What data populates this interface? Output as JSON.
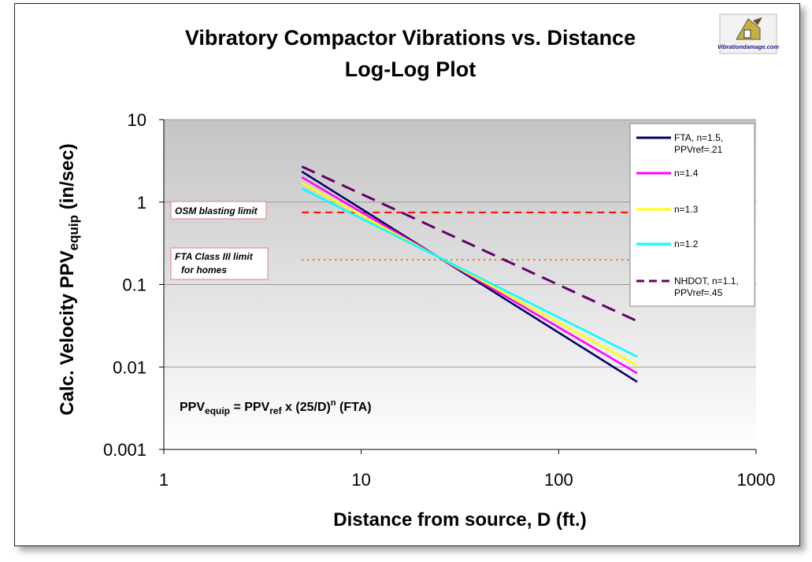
{
  "title_lines": [
    "Vibratory Compactor Vibrations vs. Distance",
    "Log-Log Plot"
  ],
  "logo_text": "Vibrationdamage.com",
  "formula": {
    "main": "PPV",
    "sub1": "equip",
    "eq": " = PPV",
    "sub2": "ref",
    "mid": " x  (25/D)",
    "sup": "n",
    "tail": " (FTA)"
  },
  "annotations": {
    "osm": "OSM blasting limit",
    "fta_line1": "FTA Class III limit",
    "fta_line2": "for homes"
  },
  "colors": {
    "fta": "#000066",
    "n14": "#ff00ff",
    "n13": "#ffff00",
    "n12": "#00ffff",
    "nhdot": "#660066",
    "osm": "#ff0000",
    "ftalimit": "#ff6600",
    "annborder": "#e08080"
  },
  "chart_data": {
    "type": "line",
    "title": "Vibratory Compactor Vibrations vs. Distance Log-Log Plot",
    "xlabel": "Distance from source, D (ft.)",
    "ylabel": {
      "main": "Calc. Velocity PPV",
      "sub": "equip",
      "tail": " (in/sec)"
    },
    "xscale": "log",
    "yscale": "log",
    "xlim": [
      1,
      1000
    ],
    "ylim": [
      0.001,
      10
    ],
    "xticks": [
      {
        "v": 1,
        "label": "1"
      },
      {
        "v": 10,
        "label": "10"
      },
      {
        "v": 100,
        "label": "100"
      },
      {
        "v": 1000,
        "label": "1000"
      }
    ],
    "yticks": [
      {
        "v": 10,
        "label": "10"
      },
      {
        "v": 1,
        "label": "1"
      },
      {
        "v": 0.1,
        "label": "0.1"
      },
      {
        "v": 0.01,
        "label": "0.01"
      },
      {
        "v": 0.001,
        "label": "0.001"
      }
    ],
    "grid": "horizontal",
    "legend_position": "right",
    "series": [
      {
        "name": "FTA, n=1.5, PPVref=.21",
        "key": "fta",
        "style": "solid",
        "x": [
          5,
          250
        ],
        "y": [
          2.35,
          0.0066
        ]
      },
      {
        "name": "n=1.4",
        "key": "n14",
        "style": "solid",
        "x": [
          5,
          250
        ],
        "y": [
          2.0,
          0.0084
        ]
      },
      {
        "name": "n=1.3",
        "key": "n13",
        "style": "solid",
        "x": [
          5,
          250
        ],
        "y": [
          1.71,
          0.0105
        ]
      },
      {
        "name": "n=1.2",
        "key": "n12",
        "style": "solid",
        "x": [
          5,
          250
        ],
        "y": [
          1.46,
          0.0133
        ]
      },
      {
        "name": "NHDOT, n=1.1, PPVref=.45",
        "key": "nhdot",
        "style": "dashed",
        "x": [
          5,
          250
        ],
        "y": [
          2.7,
          0.036
        ]
      }
    ],
    "reference_lines": [
      {
        "name": "OSM blasting limit",
        "key": "osm",
        "y": 0.75,
        "x": [
          5,
          250
        ],
        "style": "dashed"
      },
      {
        "name": "FTA Class III limit for homes",
        "key": "ftalimit",
        "y": 0.2,
        "x": [
          5,
          250
        ],
        "style": "dotted"
      }
    ]
  }
}
